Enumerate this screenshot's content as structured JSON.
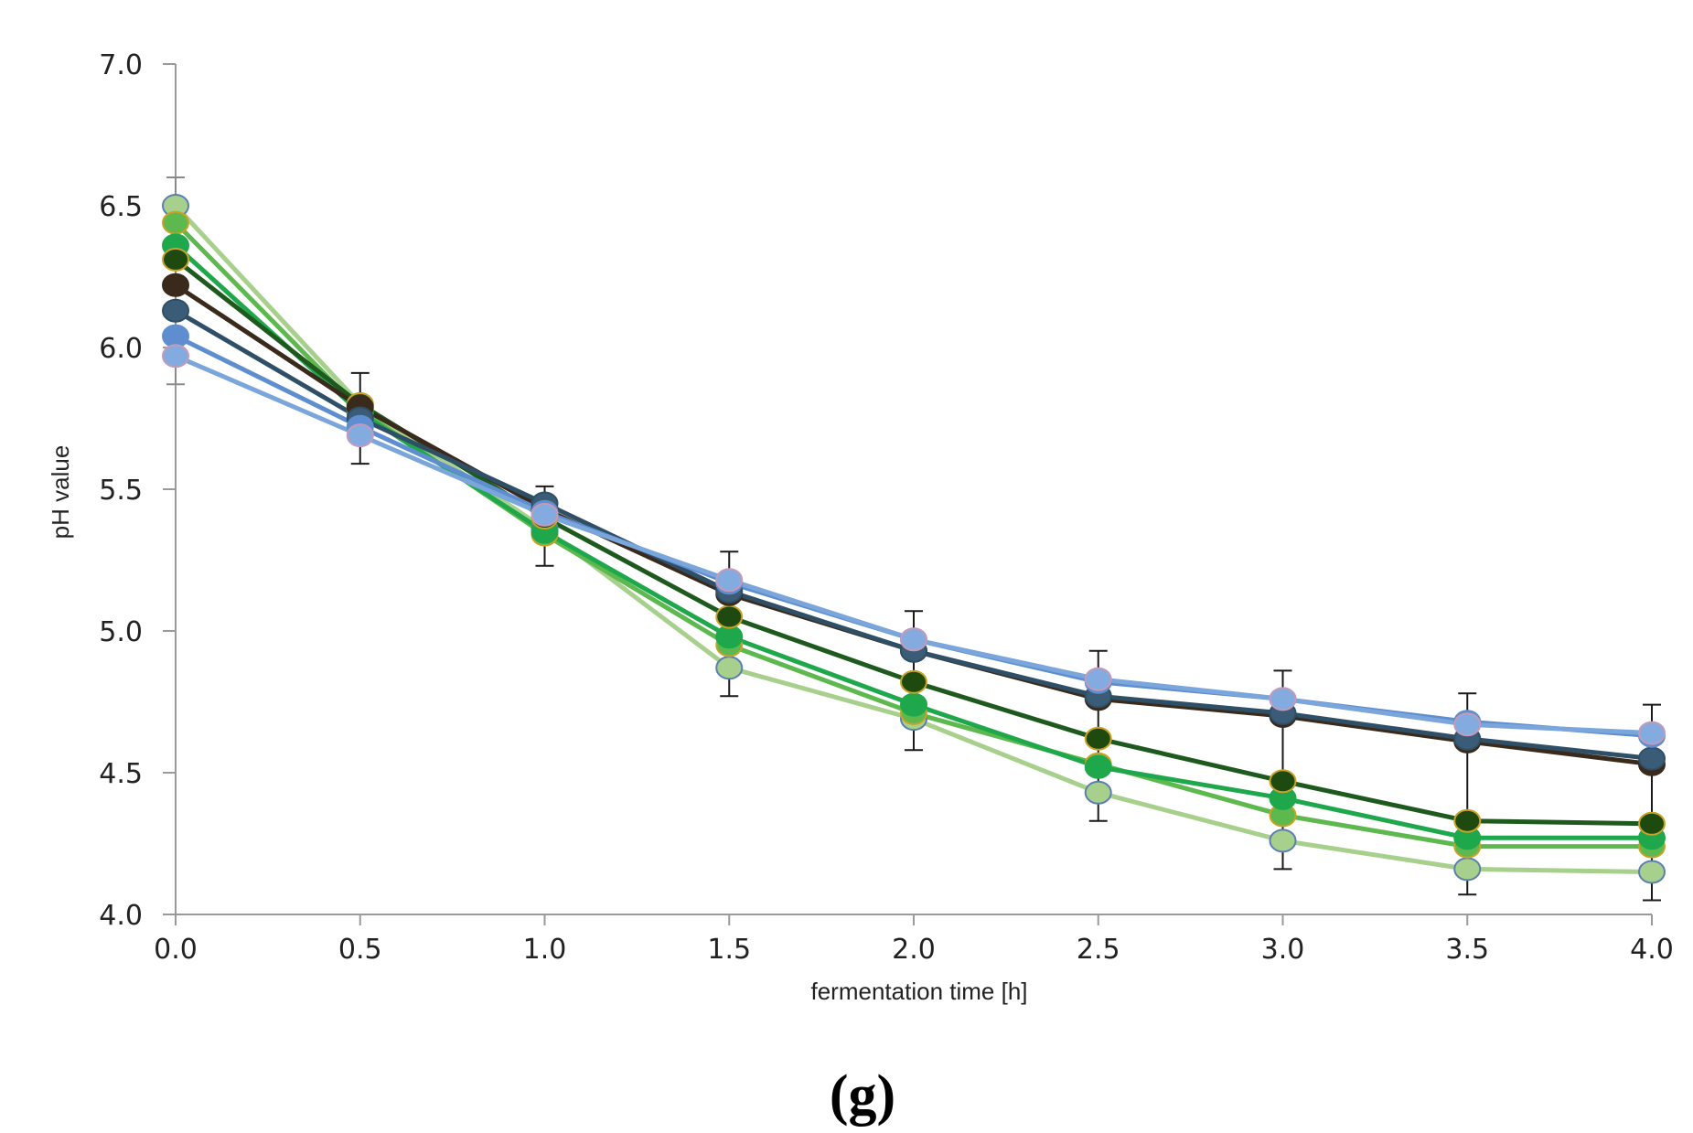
{
  "chart_data": {
    "type": "line",
    "title": "",
    "panel_label": "(g)",
    "xlabel": "fermentation time [h]",
    "ylabel": "pH value",
    "xlim": [
      0.0,
      4.0
    ],
    "ylim": [
      4.0,
      7.0
    ],
    "x": [
      0.0,
      0.5,
      1.0,
      1.5,
      2.0,
      2.5,
      3.0,
      3.5,
      4.0
    ],
    "x_tick_labels": [
      "0.0",
      "0.5",
      "1.0",
      "1.5",
      "2.0",
      "2.5",
      "3.0",
      "3.5",
      "4.0"
    ],
    "y_ticks": [
      4.0,
      4.5,
      5.0,
      5.5,
      6.0,
      6.5,
      7.0
    ],
    "y_tick_labels": [
      "4.0",
      "4.5",
      "5.0",
      "5.5",
      "6.0",
      "6.5",
      "7.0"
    ],
    "grid": false,
    "legend": null,
    "series": [
      {
        "name": "series-1",
        "color": "#a8d08d",
        "marker_fill": "#a8d08d",
        "marker_edge": "#5b7fb0",
        "values": [
          6.5,
          5.8,
          5.36,
          4.87,
          4.69,
          4.43,
          4.26,
          4.16,
          4.15
        ]
      },
      {
        "name": "series-2",
        "color": "#5db84e",
        "marker_fill": "#5db84e",
        "marker_edge": "#c9a227",
        "values": [
          6.44,
          5.78,
          5.34,
          4.95,
          4.71,
          4.53,
          4.35,
          4.24,
          4.24
        ]
      },
      {
        "name": "series-3",
        "color": "#1fa84b",
        "marker_fill": "#1fa84b",
        "marker_edge": "#1fa84b",
        "values": [
          6.36,
          5.77,
          5.35,
          4.98,
          4.74,
          4.52,
          4.41,
          4.27,
          4.27
        ]
      },
      {
        "name": "series-4",
        "color": "#1e5a1e",
        "marker_fill": "#1e4a10",
        "marker_edge": "#c9a227",
        "values": [
          6.31,
          5.8,
          5.4,
          5.05,
          4.82,
          4.62,
          4.47,
          4.33,
          4.32
        ]
      },
      {
        "name": "series-5",
        "color": "#3a2a1c",
        "marker_fill": "#3a2a1c",
        "marker_edge": "#3a2a1c",
        "values": [
          6.22,
          5.79,
          5.43,
          5.13,
          4.93,
          4.76,
          4.7,
          4.61,
          4.53
        ]
      },
      {
        "name": "series-6",
        "color": "#2e4f66",
        "marker_fill": "#3b5c76",
        "marker_edge": "#2e4f66",
        "values": [
          6.13,
          5.75,
          5.45,
          5.14,
          4.93,
          4.77,
          4.71,
          4.62,
          4.55
        ]
      },
      {
        "name": "series-7",
        "color": "#5f8ed0",
        "marker_fill": "#5f8ed0",
        "marker_edge": "#5f8ed0",
        "values": [
          6.04,
          5.72,
          5.42,
          5.17,
          4.97,
          4.82,
          4.76,
          4.68,
          4.63
        ]
      },
      {
        "name": "series-8",
        "color": "#7aa6dc",
        "marker_fill": "#84abe0",
        "marker_edge": "#c59ab8",
        "values": [
          5.97,
          5.69,
          5.41,
          5.18,
          4.97,
          4.83,
          4.76,
          4.67,
          4.64
        ]
      }
    ],
    "error_bars": [
      {
        "x": 0.0,
        "low": 5.87,
        "high": 6.6
      },
      {
        "x": 0.5,
        "low": 5.59,
        "high": 5.91
      },
      {
        "x": 1.0,
        "low": 5.23,
        "high": 5.51
      },
      {
        "x": 1.5,
        "low": 4.77,
        "high": 5.28
      },
      {
        "x": 2.0,
        "low": 4.58,
        "high": 5.07
      },
      {
        "x": 2.5,
        "low": 4.33,
        "high": 4.93
      },
      {
        "x": 3.0,
        "low": 4.16,
        "high": 4.86
      },
      {
        "x": 3.5,
        "low": 4.07,
        "high": 4.78
      },
      {
        "x": 4.0,
        "low": 4.05,
        "high": 4.74
      }
    ]
  }
}
